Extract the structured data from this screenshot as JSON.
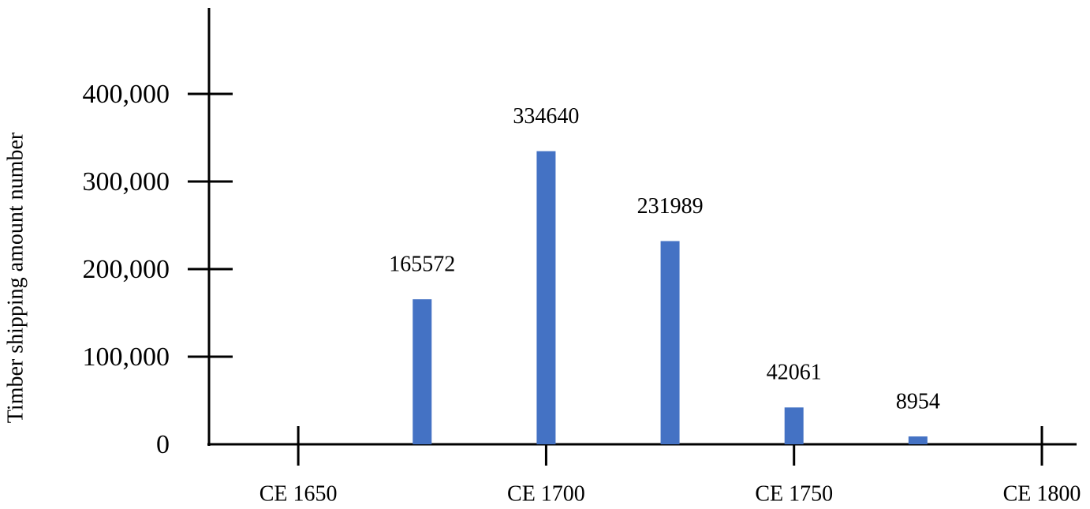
{
  "chart_data": {
    "type": "bar",
    "ylabel": "Timber shipping amount number",
    "x": [
      1675,
      1700,
      1725,
      1750,
      1775
    ],
    "values": [
      165572,
      334640,
      231989,
      42061,
      8954
    ],
    "color": "#4472c4",
    "xlim": [
      1632,
      1807
    ],
    "xticks": [
      {
        "value": 1650,
        "label": "CE 1650"
      },
      {
        "value": 1700,
        "label": "CE 1700"
      },
      {
        "value": 1750,
        "label": "CE 1750"
      },
      {
        "value": 1800,
        "label": "CE 1800"
      }
    ],
    "ylim": [
      0,
      500000
    ],
    "yticks": [
      0,
      {
        "value": 100000,
        "label": "100,000"
      },
      {
        "value": 200000,
        "label": "200,000"
      },
      {
        "value": 300000,
        "label": "300,000"
      },
      {
        "value": 400000,
        "label": "400,000"
      }
    ],
    "grid": false
  }
}
